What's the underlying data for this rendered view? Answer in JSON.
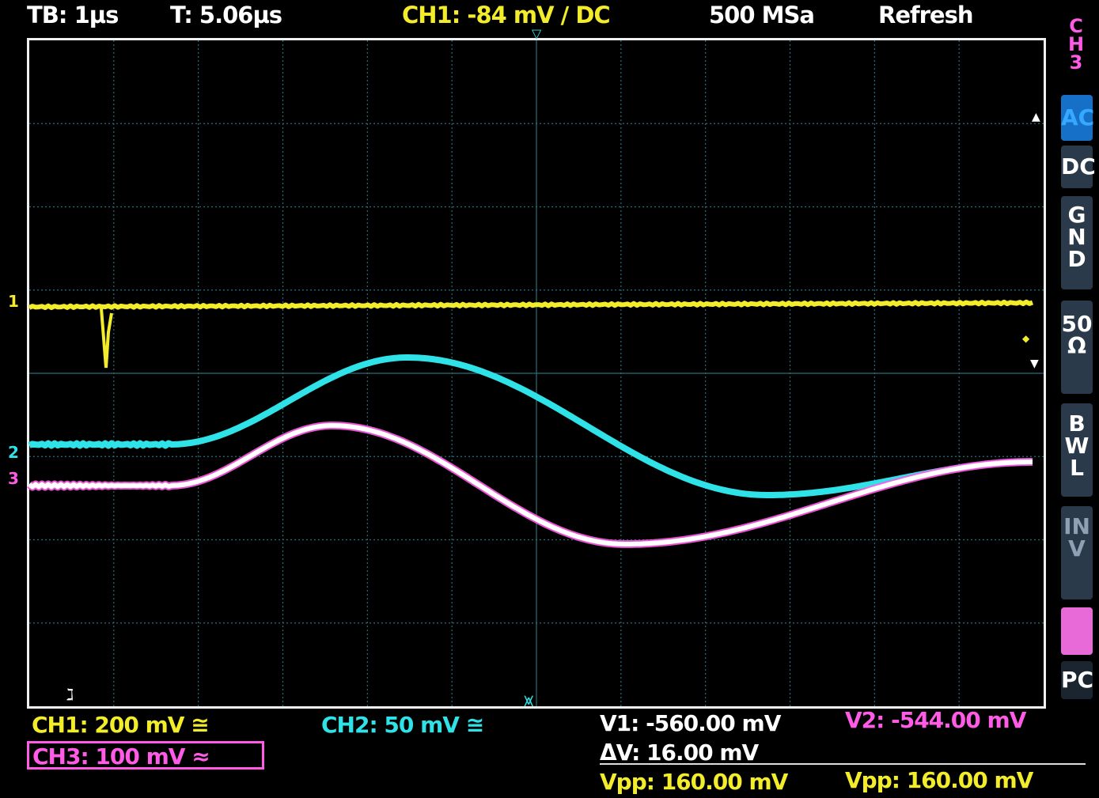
{
  "header": {
    "timebase": "TB: 1µs",
    "trigger_time": "T: 5.06µs",
    "trigger_channel": "CH1: -84 mV ∕ DC",
    "sample_rate": "500 MSa",
    "mode": "Refresh"
  },
  "side_panel": {
    "title": "CH3",
    "buttons": [
      {
        "label": "AC",
        "active": true
      },
      {
        "label": "DC",
        "active": false
      },
      {
        "label": "GND",
        "active": false
      },
      {
        "label": "50Ω",
        "active": false
      },
      {
        "label": "BWL",
        "active": false
      },
      {
        "label": "INV",
        "active": false
      },
      {
        "label": "",
        "active": false
      },
      {
        "label": "PC",
        "active": false
      }
    ]
  },
  "channels": {
    "ch1": {
      "label": "CH1: 200 mV ≅",
      "marker": "1",
      "color": "#f2ec2a"
    },
    "ch2": {
      "label": "CH2: 50 mV ≅",
      "marker": "2",
      "color": "#2fe2e8"
    },
    "ch3": {
      "label": "CH3: 100 mV ≈",
      "marker": "3",
      "color": "#ff5be6"
    }
  },
  "measurements": {
    "v1": "V1: -560.00 mV",
    "v2": "V2: -544.00 mV",
    "dv": "ΔV: 16.00 mV",
    "vpp1": "Vpp: 160.00 mV",
    "vpp2": "Vpp: 160.00 mV"
  }
}
